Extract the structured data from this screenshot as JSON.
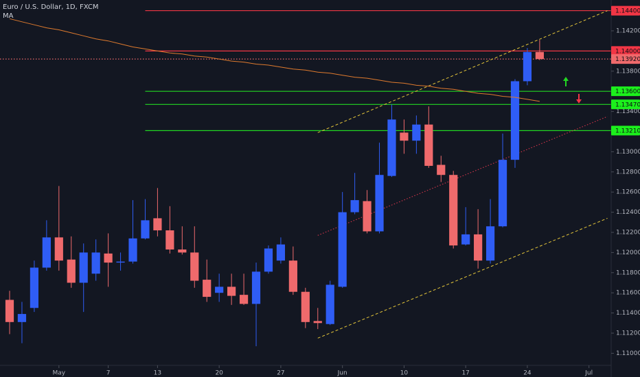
{
  "chart_data": {
    "type": "candlestick",
    "title": "Euro / U.S. Dollar, 1D, FXCM",
    "colors": {
      "up": "#2f5df5",
      "down": "#ef6a6c"
    },
    "x": [
      0,
      1,
      2,
      3,
      4,
      5,
      6,
      7,
      8,
      9,
      10,
      11,
      12,
      13,
      14,
      15,
      16,
      17,
      18,
      19,
      20,
      21,
      22,
      23,
      24,
      25,
      26,
      27,
      28,
      29,
      30,
      31,
      32,
      33,
      34,
      35,
      36,
      37,
      38,
      39,
      40,
      41,
      42,
      43
    ],
    "open": [
      1.1153,
      1.1131,
      1.1145,
      1.1185,
      1.1215,
      1.1193,
      1.117,
      1.1179,
      1.1199,
      1.119,
      1.1191,
      1.1214,
      1.1234,
      1.1222,
      1.1203,
      1.12,
      1.1173,
      1.116,
      1.1166,
      1.1158,
      1.1149,
      1.1181,
      1.1192,
      1.1192,
      1.1161,
      1.1132,
      1.1129,
      1.1166,
      1.124,
      1.1251,
      1.1221,
      1.1276,
      1.1319,
      1.1311,
      1.1327,
      1.1287,
      1.1277,
      1.1208,
      1.1218,
      1.1192,
      1.1226,
      1.1292,
      1.137,
      1.1399
    ],
    "high": [
      1.1162,
      1.1151,
      1.1192,
      1.1232,
      1.1266,
      1.1216,
      1.1209,
      1.1213,
      1.1219,
      1.12,
      1.1252,
      1.1253,
      1.1264,
      1.1246,
      1.1226,
      1.1226,
      1.1193,
      1.1179,
      1.1179,
      1.1179,
      1.119,
      1.1207,
      1.1215,
      1.1206,
      1.1165,
      1.1145,
      1.1172,
      1.126,
      1.1279,
      1.1262,
      1.1309,
      1.1347,
      1.1332,
      1.1336,
      1.1345,
      1.1296,
      1.1281,
      1.1245,
      1.1243,
      1.1253,
      1.1318,
      1.1372,
      1.1403,
      1.1411
    ],
    "low": [
      1.1119,
      1.111,
      1.1141,
      1.1182,
      1.1182,
      1.1165,
      1.1141,
      1.1172,
      1.1166,
      1.1182,
      1.1189,
      1.1213,
      1.1216,
      1.1199,
      1.1198,
      1.1165,
      1.1151,
      1.1151,
      1.1148,
      1.1148,
      1.1107,
      1.1179,
      1.1189,
      1.1158,
      1.1125,
      1.1124,
      1.1128,
      1.1165,
      1.1238,
      1.1219,
      1.1219,
      1.1275,
      1.1298,
      1.1298,
      1.1284,
      1.127,
      1.1204,
      1.1207,
      1.1184,
      1.1189,
      1.1225,
      1.1284,
      1.1366,
      1.1391
    ],
    "close": [
      1.1131,
      1.1139,
      1.1185,
      1.1215,
      1.1192,
      1.117,
      1.12,
      1.12,
      1.119,
      1.1191,
      1.1214,
      1.1232,
      1.1222,
      1.1203,
      1.12,
      1.1172,
      1.1156,
      1.1166,
      1.1157,
      1.1149,
      1.1181,
      1.1204,
      1.1208,
      1.1161,
      1.1131,
      1.113,
      1.1168,
      1.124,
      1.1252,
      1.1221,
      1.1277,
      1.1332,
      1.1311,
      1.1327,
      1.1286,
      1.1277,
      1.1207,
      1.1218,
      1.1192,
      1.1226,
      1.1292,
      1.137,
      1.1399,
      1.1392
    ],
    "ma": {
      "name": "MA",
      "color": "#e07b2e",
      "values": [
        1.1432,
        1.1429,
        1.1426,
        1.1423,
        1.1421,
        1.1418,
        1.1415,
        1.1412,
        1.141,
        1.1407,
        1.1404,
        1.1402,
        1.14,
        1.1398,
        1.1397,
        1.1395,
        1.1394,
        1.1392,
        1.139,
        1.1389,
        1.1387,
        1.1386,
        1.1384,
        1.1382,
        1.1381,
        1.1379,
        1.1378,
        1.1376,
        1.1374,
        1.1373,
        1.1371,
        1.1369,
        1.1368,
        1.1366,
        1.1365,
        1.1363,
        1.1362,
        1.136,
        1.1358,
        1.1357,
        1.1355,
        1.1354,
        1.1352,
        1.135
      ]
    },
    "trendlines": [
      {
        "color": "#e6c73a",
        "style": "dashed",
        "x": [
          25,
          48.5
        ],
        "values": [
          1.1319,
          1.144
        ]
      },
      {
        "color": "#e6c73a",
        "style": "dashed",
        "x": [
          25,
          48.5
        ],
        "values": [
          1.1115,
          1.1234
        ]
      },
      {
        "color": "#e8384f",
        "style": "dotted",
        "x": [
          25,
          48.5
        ],
        "values": [
          1.1217,
          1.1335
        ]
      }
    ],
    "levels": [
      {
        "value": 1.144,
        "label": "1.14400",
        "color": "#f23645",
        "box": "#f23645",
        "style": "solid",
        "from": 11
      },
      {
        "value": 1.14,
        "label": "1.14000",
        "color": "#f23645",
        "box": "#f23645",
        "style": "solid",
        "from": 11
      },
      {
        "value": 1.1392,
        "label": "1.13920",
        "color": "#ef6a6c",
        "box": "#ef6a6c",
        "style": "dotted",
        "from": -0.78
      },
      {
        "value": 1.136,
        "label": "1.13600",
        "color": "#22d822",
        "box": "#1cf01c",
        "style": "solid",
        "from": 11
      },
      {
        "value": 1.1347,
        "label": "1.13470",
        "color": "#22d822",
        "box": "#1cf01c",
        "style": "solid",
        "from": 11
      },
      {
        "value": 1.1321,
        "label": "1.13210",
        "color": "#22d822",
        "box": "#1cf01c",
        "style": "solid",
        "from": 11
      }
    ],
    "xlim": [
      -0.78,
      48.8
    ],
    "ylim": [
      1.10887,
      1.14506
    ],
    "xticks": [
      {
        "value": 4,
        "label": "May"
      },
      {
        "value": 8,
        "label": "7"
      },
      {
        "value": 12,
        "label": "13"
      },
      {
        "value": 17,
        "label": "20"
      },
      {
        "value": 22,
        "label": "27"
      },
      {
        "value": 27,
        "label": "Jun"
      },
      {
        "value": 32,
        "label": "10"
      },
      {
        "value": 37,
        "label": "17"
      },
      {
        "value": 42,
        "label": "24"
      },
      {
        "value": 47,
        "label": "Jul"
      }
    ],
    "yticks": [
      {
        "value": 1.142,
        "label": "1.14200"
      },
      {
        "value": 1.138,
        "label": "1.13800"
      },
      {
        "value": 1.134,
        "label": "1.13400"
      },
      {
        "value": 1.13,
        "label": "1.13000"
      },
      {
        "value": 1.128,
        "label": "1.12800"
      },
      {
        "value": 1.126,
        "label": "1.12600"
      },
      {
        "value": 1.124,
        "label": "1.12400"
      },
      {
        "value": 1.122,
        "label": "1.12200"
      },
      {
        "value": 1.12,
        "label": "1.12000"
      },
      {
        "value": 1.118,
        "label": "1.11800"
      },
      {
        "value": 1.116,
        "label": "1.11600"
      },
      {
        "value": 1.114,
        "label": "1.11400"
      },
      {
        "value": 1.112,
        "label": "1.11200"
      },
      {
        "value": 1.11,
        "label": "1.11000"
      }
    ],
    "grid": false
  }
}
